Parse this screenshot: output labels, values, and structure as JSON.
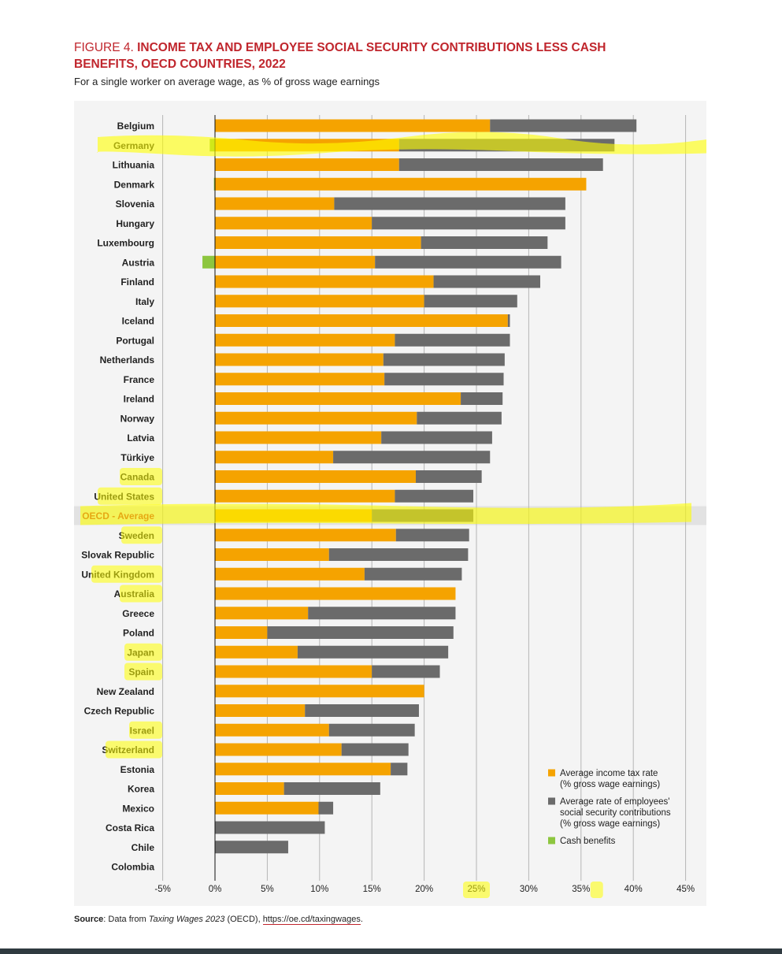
{
  "figure": {
    "label": "FIGURE 4.",
    "title": "INCOME TAX AND EMPLOYEE SOCIAL SECURITY CONTRIBUTIONS LESS CASH BENEFITS, OECD COUNTRIES, 2022",
    "subtitle": "For a single worker on average wage, as % of gross wage earnings"
  },
  "source": {
    "prefix": "Source",
    "text_before": ": Data from ",
    "publication": "Taxing Wages 2023",
    "text_mid": " (OECD), ",
    "link": "https://oe.cd/taxingwages",
    "text_after": "."
  },
  "colors": {
    "income_tax": "#f5a300",
    "social_security": "#6b6b6b",
    "cash_benefits": "#8dc63f",
    "highlight": "#ffff00",
    "oecd_label": "#c0262d"
  },
  "chart_data": {
    "type": "bar",
    "orientation": "horizontal",
    "stacked": true,
    "categories": [
      "Belgium",
      "Germany",
      "Lithuania",
      "Denmark",
      "Slovenia",
      "Hungary",
      "Luxembourg",
      "Austria",
      "Finland",
      "Italy",
      "Iceland",
      "Portugal",
      "Netherlands",
      "France",
      "Ireland",
      "Norway",
      "Latvia",
      "Türkiye",
      "Canada",
      "United States",
      "OECD - Average",
      "Sweden",
      "Slovak Republic",
      "United Kingdom",
      "Australia",
      "Greece",
      "Poland",
      "Japan",
      "Spain",
      "New Zealand",
      "Czech Republic",
      "Israel",
      "Switzerland",
      "Estonia",
      "Korea",
      "Mexico",
      "Costa Rica",
      "Chile",
      "Colombia"
    ],
    "series": [
      {
        "name": "Average income tax rate (% gross wage earnings)",
        "color": "#f5a300",
        "values": [
          26.3,
          17.6,
          17.6,
          35.5,
          11.4,
          15.0,
          19.7,
          15.3,
          20.9,
          20.0,
          28.0,
          17.2,
          16.1,
          16.2,
          23.5,
          19.3,
          15.9,
          11.3,
          19.2,
          17.2,
          15.0,
          17.3,
          10.9,
          14.3,
          23.0,
          8.9,
          5.0,
          7.9,
          15.0,
          20.0,
          8.6,
          10.9,
          12.1,
          16.8,
          6.6,
          9.9,
          0,
          0,
          0
        ]
      },
      {
        "name": "Average rate of employees' social security contributions (% gross wage earnings)",
        "color": "#6b6b6b",
        "values": [
          14.0,
          20.6,
          19.5,
          0,
          22.1,
          18.5,
          12.1,
          17.8,
          10.2,
          8.9,
          0.2,
          11.0,
          11.6,
          11.4,
          4.0,
          8.1,
          10.6,
          15.0,
          6.3,
          7.5,
          9.7,
          7.0,
          13.3,
          9.3,
          0,
          14.1,
          17.8,
          14.4,
          6.5,
          0,
          10.9,
          8.2,
          6.4,
          1.6,
          9.2,
          1.4,
          10.5,
          7.0,
          0
        ]
      },
      {
        "name": "Cash benefits",
        "color": "#8dc63f",
        "values": [
          0,
          -0.5,
          0,
          -0.1,
          0,
          0,
          0,
          -1.2,
          0,
          0,
          0,
          0,
          0,
          0,
          0,
          0,
          0,
          0,
          0,
          0,
          0,
          0,
          0,
          0,
          0,
          0,
          0,
          0,
          0,
          0,
          0,
          0,
          0,
          0,
          0,
          0,
          0,
          0,
          0
        ]
      }
    ],
    "xlim": [
      -5,
      45
    ],
    "x_ticks": [
      "-5%",
      "0%",
      "5%",
      "10%",
      "15%",
      "20%",
      "25%",
      "30%",
      "35%",
      "40%",
      "45%"
    ],
    "highlighted_row": "OECD - Average",
    "legend_position": "bottom-right",
    "grid": true,
    "xlabel": "",
    "ylabel": ""
  },
  "legend": [
    {
      "lines": [
        "Average income tax rate",
        "(% gross wage earnings)"
      ],
      "color": "#f5a300"
    },
    {
      "lines": [
        "Average rate of employees'",
        "social security contributions",
        "(% gross wage earnings)"
      ],
      "color": "#6b6b6b"
    },
    {
      "lines": [
        "Cash benefits"
      ],
      "color": "#8dc63f"
    }
  ]
}
